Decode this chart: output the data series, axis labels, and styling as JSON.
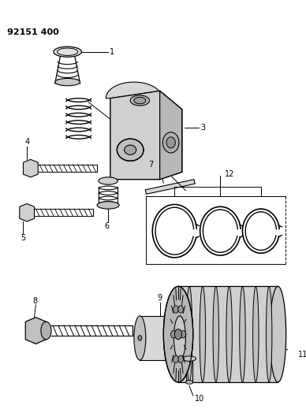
{
  "title": "92151 400",
  "bg_color": "#ffffff",
  "line_color": "#000000",
  "fig_width": 3.88,
  "fig_height": 5.33,
  "dpi": 100
}
